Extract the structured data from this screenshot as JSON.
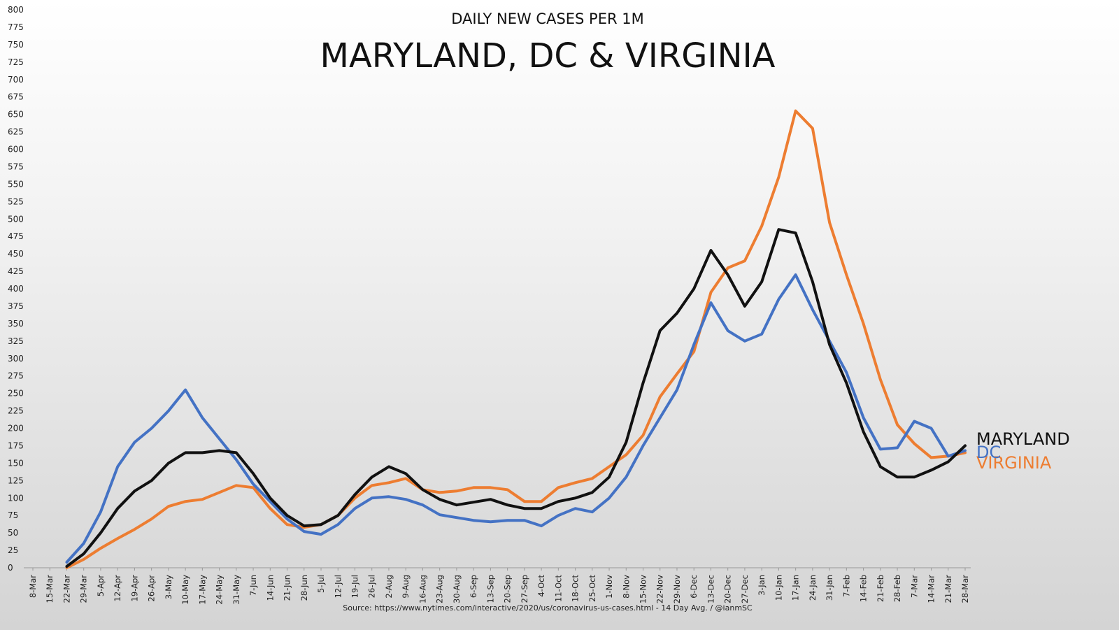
{
  "chart_data": {
    "type": "line",
    "subtitle": "DAILY NEW CASES PER 1M",
    "title": "MARYLAND, DC & VIRGINIA",
    "source": "Source: https://www.nytimes.com/interactive/2020/us/coronavirus-us-cases.html - 14 Day Avg. / @ianmSC",
    "ylim": [
      0,
      800
    ],
    "y_ticks": [
      0,
      25,
      50,
      75,
      100,
      125,
      150,
      175,
      200,
      225,
      250,
      275,
      300,
      325,
      350,
      375,
      400,
      425,
      450,
      475,
      500,
      525,
      550,
      575,
      600,
      625,
      650,
      675,
      700,
      725,
      750,
      775,
      800
    ],
    "x_ticks": [
      "8-Mar",
      "15-Mar",
      "22-Mar",
      "29-Mar",
      "5-Apr",
      "12-Apr",
      "19-Apr",
      "26-Apr",
      "3-May",
      "10-May",
      "17-May",
      "24-May",
      "31-May",
      "7-Jun",
      "14-Jun",
      "21-Jun",
      "28-Jun",
      "5-Jul",
      "12-Jul",
      "19-Jul",
      "26-Jul",
      "2-Aug",
      "9-Aug",
      "16-Aug",
      "23-Aug",
      "30-Aug",
      "6-Sep",
      "13-Sep",
      "20-Sep",
      "27-Sep",
      "4-Oct",
      "11-Oct",
      "18-Oct",
      "25-Oct",
      "1-Nov",
      "8-Nov",
      "15-Nov",
      "22-Nov",
      "29-Nov",
      "6-Dec",
      "13-Dec",
      "20-Dec",
      "27-Dec",
      "3-Jan",
      "10-Jan",
      "17-Jan",
      "24-Jan",
      "31-Jan",
      "7-Feb",
      "14-Feb",
      "21-Feb",
      "28-Feb",
      "7-Mar",
      "14-Mar",
      "21-Mar",
      "28-Mar"
    ],
    "grid": false,
    "legend": "labels at right end of lines",
    "series": [
      {
        "name": "DC",
        "color": "#4472C4",
        "values": [
          null,
          null,
          8,
          35,
          80,
          145,
          180,
          200,
          225,
          255,
          215,
          185,
          155,
          120,
          95,
          70,
          52,
          48,
          62,
          85,
          100,
          102,
          98,
          90,
          76,
          72,
          68,
          66,
          68,
          68,
          60,
          75,
          85,
          80,
          100,
          130,
          175,
          215,
          255,
          320,
          380,
          340,
          325,
          335,
          385,
          420,
          370,
          325,
          280,
          215,
          170,
          172,
          210,
          200,
          160,
          168
        ]
      },
      {
        "name": "MARYLAND",
        "color": "#111111",
        "values": [
          null,
          null,
          2,
          20,
          50,
          85,
          110,
          125,
          150,
          165,
          165,
          168,
          165,
          135,
          100,
          75,
          60,
          62,
          75,
          105,
          130,
          145,
          135,
          112,
          98,
          90,
          94,
          98,
          90,
          85,
          85,
          95,
          100,
          108,
          130,
          180,
          265,
          340,
          365,
          400,
          455,
          420,
          375,
          410,
          485,
          480,
          410,
          320,
          265,
          195,
          145,
          130,
          130,
          140,
          152,
          175
        ]
      },
      {
        "name": "VIRGINIA",
        "color": "#ED7D31",
        "values": [
          null,
          null,
          0,
          12,
          28,
          42,
          55,
          70,
          88,
          95,
          98,
          108,
          118,
          115,
          85,
          62,
          58,
          62,
          75,
          100,
          118,
          122,
          128,
          112,
          108,
          110,
          115,
          115,
          112,
          95,
          95,
          115,
          122,
          128,
          145,
          162,
          190,
          245,
          278,
          310,
          395,
          430,
          440,
          490,
          560,
          655,
          630,
          495,
          420,
          350,
          270,
          205,
          178,
          158,
          160,
          165
        ]
      }
    ]
  }
}
